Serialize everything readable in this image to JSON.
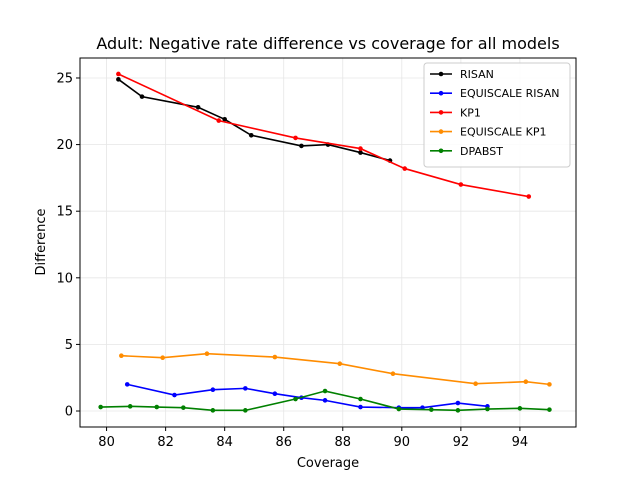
{
  "chart_data": {
    "type": "line",
    "title": "Adult: Negative rate difference vs coverage for all models",
    "xlabel": "Coverage",
    "ylabel": "Difference",
    "xlim": [
      79.1,
      95.9
    ],
    "ylim": [
      -1.2,
      26.5
    ],
    "xticks": [
      80,
      82,
      84,
      86,
      88,
      90,
      92,
      94
    ],
    "yticks": [
      0,
      5,
      10,
      15,
      20,
      25
    ],
    "grid": true,
    "legend_position": "top-right",
    "series": [
      {
        "name": "RISAN",
        "color": "#000000",
        "points": [
          [
            80.4,
            24.9
          ],
          [
            81.2,
            23.6
          ],
          [
            83.1,
            22.8
          ],
          [
            84.0,
            21.9
          ],
          [
            84.9,
            20.7
          ],
          [
            86.6,
            19.9
          ],
          [
            87.5,
            20.0
          ],
          [
            88.6,
            19.4
          ],
          [
            89.6,
            18.8
          ]
        ]
      },
      {
        "name": "EQUISCALE RISAN",
        "color": "#0000ff",
        "points": [
          [
            80.7,
            2.0
          ],
          [
            82.3,
            1.2
          ],
          [
            83.6,
            1.6
          ],
          [
            84.7,
            1.7
          ],
          [
            85.7,
            1.3
          ],
          [
            86.6,
            1.0
          ],
          [
            87.4,
            0.8
          ],
          [
            88.6,
            0.3
          ],
          [
            89.9,
            0.25
          ],
          [
            90.7,
            0.25
          ],
          [
            91.9,
            0.6
          ],
          [
            92.9,
            0.35
          ]
        ]
      },
      {
        "name": "KP1",
        "color": "#ff0000",
        "points": [
          [
            80.4,
            25.3
          ],
          [
            83.8,
            21.8
          ],
          [
            86.4,
            20.5
          ],
          [
            88.6,
            19.7
          ],
          [
            90.1,
            18.2
          ],
          [
            92.0,
            17.0
          ],
          [
            94.3,
            16.1
          ]
        ]
      },
      {
        "name": "EQUISCALE KP1",
        "color": "#ff8c00",
        "points": [
          [
            80.5,
            4.15
          ],
          [
            81.9,
            4.0
          ],
          [
            83.4,
            4.3
          ],
          [
            85.7,
            4.05
          ],
          [
            87.9,
            3.55
          ],
          [
            89.7,
            2.8
          ],
          [
            92.5,
            2.05
          ],
          [
            94.2,
            2.2
          ],
          [
            95.0,
            2.0
          ]
        ]
      },
      {
        "name": "DPABST",
        "color": "#008000",
        "points": [
          [
            79.8,
            0.3
          ],
          [
            80.8,
            0.35
          ],
          [
            81.7,
            0.3
          ],
          [
            82.6,
            0.25
          ],
          [
            83.6,
            0.05
          ],
          [
            84.7,
            0.05
          ],
          [
            86.4,
            0.9
          ],
          [
            87.4,
            1.5
          ],
          [
            88.6,
            0.9
          ],
          [
            89.9,
            0.15
          ],
          [
            91.0,
            0.1
          ],
          [
            91.9,
            0.05
          ],
          [
            92.9,
            0.15
          ],
          [
            94.0,
            0.2
          ],
          [
            95.0,
            0.1
          ]
        ]
      }
    ]
  }
}
